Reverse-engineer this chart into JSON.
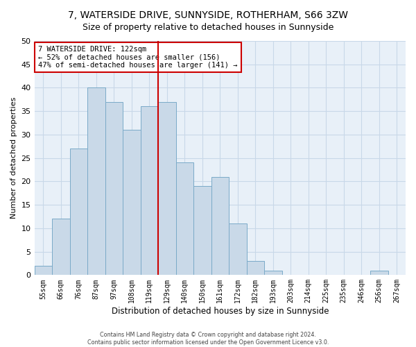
{
  "title": "7, WATERSIDE DRIVE, SUNNYSIDE, ROTHERHAM, S66 3ZW",
  "subtitle": "Size of property relative to detached houses in Sunnyside",
  "xlabel": "Distribution of detached houses by size in Sunnyside",
  "ylabel": "Number of detached properties",
  "bar_labels": [
    "55sqm",
    "66sqm",
    "76sqm",
    "87sqm",
    "97sqm",
    "108sqm",
    "119sqm",
    "129sqm",
    "140sqm",
    "150sqm",
    "161sqm",
    "172sqm",
    "182sqm",
    "193sqm",
    "203sqm",
    "214sqm",
    "225sqm",
    "235sqm",
    "246sqm",
    "256sqm",
    "267sqm"
  ],
  "bar_values": [
    2,
    12,
    27,
    40,
    37,
    31,
    36,
    37,
    24,
    19,
    21,
    11,
    3,
    1,
    0,
    0,
    0,
    0,
    0,
    1,
    0
  ],
  "bar_color": "#c9d9e8",
  "bar_edge_color": "#7aaac8",
  "vline_x": 6.5,
  "vline_color": "#cc0000",
  "annotation_title": "7 WATERSIDE DRIVE: 122sqm",
  "annotation_line2": "← 52% of detached houses are smaller (156)",
  "annotation_line3": "47% of semi-detached houses are larger (141) →",
  "annotation_box_color": "#ffffff",
  "annotation_box_edge_color": "#cc0000",
  "footer_line1": "Contains HM Land Registry data © Crown copyright and database right 2024.",
  "footer_line2": "Contains public sector information licensed under the Open Government Licence v3.0.",
  "ylim": [
    0,
    50
  ],
  "yticks": [
    0,
    5,
    10,
    15,
    20,
    25,
    30,
    35,
    40,
    45,
    50
  ],
  "grid_color": "#c8d8e8",
  "background_color": "#e8f0f8",
  "fig_background": "#ffffff"
}
